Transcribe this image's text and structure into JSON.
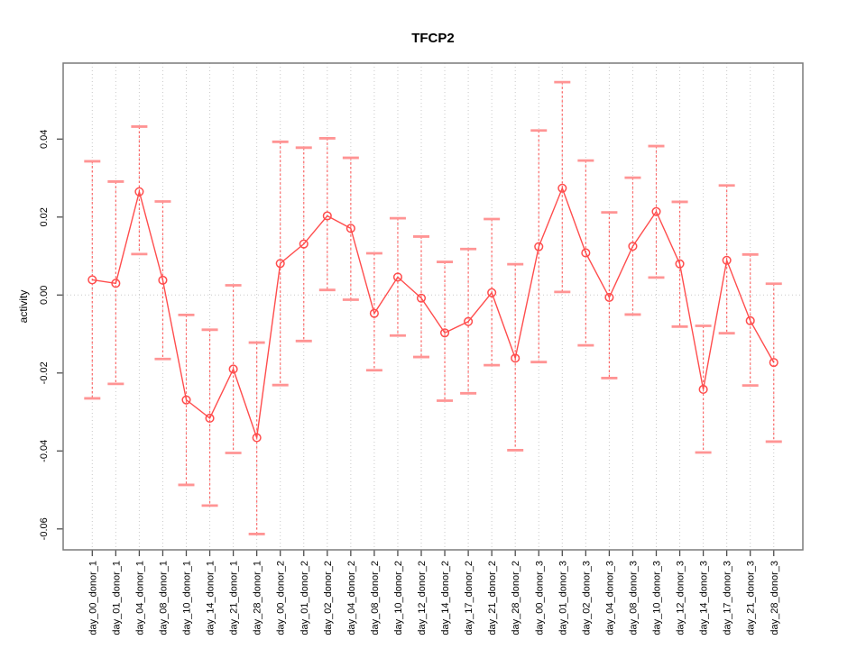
{
  "title": "TFCP2",
  "ylabel": "activity",
  "colors": {
    "line": "#ff4d4d",
    "point": "#ff4d4d",
    "error_line": "#ff5252",
    "error_cap": "#ff9494",
    "grid": "#c9c9c9",
    "zero_line": "#c9c9c9",
    "frame": "#7a7a7a",
    "tick": "#4d4d4d",
    "text": "#000000",
    "background": "#ffffff"
  },
  "chart_data": {
    "type": "line",
    "title": "TFCP2",
    "xlabel": "",
    "ylabel": "activity",
    "legend": "none",
    "grid": "vertical dotted gridlines at each category; dotted horizontal line at y=0",
    "point_style": "open circles with vertical dashed error bars and light caps",
    "ylim": [
      -0.0655,
      0.0595
    ],
    "yticks": [
      0.04,
      0.02,
      0.0,
      -0.02,
      -0.04,
      -0.06
    ],
    "ytick_labels": [
      "0.04",
      "0.02",
      "0.00",
      "-0.02",
      "-0.04",
      "-0.06"
    ],
    "categories": [
      "day_00_donor_1",
      "day_01_donor_1",
      "day_04_donor_1",
      "day_08_donor_1",
      "day_10_donor_1",
      "day_14_donor_1",
      "day_21_donor_1",
      "day_28_donor_1",
      "day_00_donor_2",
      "day_01_donor_2",
      "day_02_donor_2",
      "day_04_donor_2",
      "day_08_donor_2",
      "day_10_donor_2",
      "day_12_donor_2",
      "day_14_donor_2",
      "day_17_donor_2",
      "day_21_donor_2",
      "day_28_donor_2",
      "day_00_donor_3",
      "day_01_donor_3",
      "day_02_donor_3",
      "day_04_donor_3",
      "day_08_donor_3",
      "day_10_donor_3",
      "day_12_donor_3",
      "day_14_donor_3",
      "day_17_donor_3",
      "day_21_donor_3",
      "day_28_donor_3"
    ],
    "series": [
      {
        "name": "activity",
        "values": [
          0.0039,
          0.003,
          0.0265,
          0.0038,
          -0.0269,
          -0.0316,
          -0.019,
          -0.0366,
          0.0081,
          0.0131,
          0.0203,
          0.0171,
          -0.0047,
          0.0046,
          -0.0008,
          -0.0097,
          -0.0068,
          0.0006,
          -0.0162,
          0.0124,
          0.0274,
          0.0108,
          -0.0006,
          0.0125,
          0.0214,
          0.008,
          -0.0242,
          0.0089,
          -0.0066,
          -0.0173
        ],
        "error_high": [
          0.0343,
          0.0291,
          0.0432,
          0.024,
          -0.0051,
          -0.0089,
          0.0025,
          -0.0122,
          0.0393,
          0.0378,
          0.0402,
          0.0352,
          0.0107,
          0.0197,
          0.015,
          0.0085,
          0.0118,
          0.0195,
          0.0079,
          0.0422,
          0.0546,
          0.0345,
          0.0212,
          0.0301,
          0.0382,
          0.0239,
          -0.0079,
          0.0281,
          0.0104,
          0.0029
        ],
        "error_low": [
          -0.0265,
          -0.0228,
          0.0105,
          -0.0164,
          -0.0487,
          -0.054,
          -0.0405,
          -0.0613,
          -0.0231,
          -0.0118,
          0.0013,
          -0.0012,
          -0.0193,
          -0.0104,
          -0.0159,
          -0.0271,
          -0.0252,
          -0.018,
          -0.0398,
          -0.0172,
          0.0008,
          -0.0129,
          -0.0213,
          -0.005,
          0.0045,
          -0.0081,
          -0.0404,
          -0.0098,
          -0.0232,
          -0.0376
        ]
      }
    ]
  }
}
